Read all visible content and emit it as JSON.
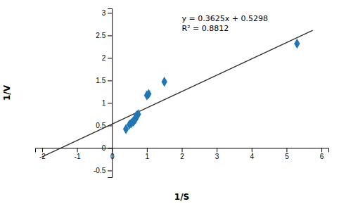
{
  "chart_data": {
    "type": "scatter",
    "x_label": "1/S",
    "y_label": "1/V",
    "annotations": [
      "y = 0.3625x + 0.5298",
      "R² = 0.8812"
    ],
    "xlim": [
      -2.2,
      6.2
    ],
    "ylim": [
      -0.65,
      3.1
    ],
    "xticks": [
      -2,
      -1,
      0,
      1,
      2,
      3,
      4,
      5,
      6
    ],
    "yticks": [
      -0.5,
      0,
      0.5,
      1,
      1.5,
      2,
      2.5,
      3
    ],
    "grid": false,
    "series": [
      {
        "type": "scatter",
        "marker": "diamond",
        "x": [
          0.4,
          0.5,
          0.55,
          0.6,
          0.62,
          0.65,
          0.68,
          0.7,
          0.75,
          1.0,
          1.05,
          1.5,
          5.3
        ],
        "values": [
          0.42,
          0.52,
          0.55,
          0.58,
          0.6,
          0.62,
          0.65,
          0.72,
          0.75,
          1.17,
          1.2,
          1.47,
          2.32
        ]
      },
      {
        "type": "line",
        "x": [
          -2.0,
          5.75
        ],
        "values": [
          -0.1952,
          2.614175
        ]
      }
    ]
  }
}
